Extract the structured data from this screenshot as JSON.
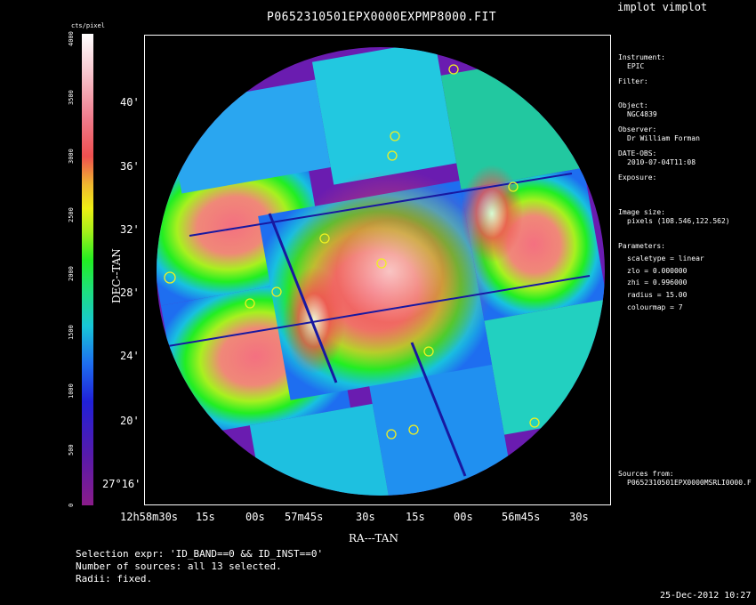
{
  "app_title": "implot vimplot",
  "plot_title": "P0652310501EPX0000EXPMP8000.FIT",
  "colorbar": {
    "unit": "cts/pixel",
    "ticks": [
      "4000",
      "3500",
      "3000",
      "2500",
      "2000",
      "1500",
      "1000",
      "500",
      "0"
    ]
  },
  "y_axis": {
    "title": "DEC--TAN",
    "ticks": [
      "40'",
      "36'",
      "32'",
      "28'",
      "24'",
      "20'",
      "27°16'"
    ]
  },
  "x_axis": {
    "title": "RA---TAN",
    "ticks": [
      "12h58m30s",
      "15s",
      "00s",
      "57m45s",
      "30s",
      "15s",
      "00s",
      "56m45s",
      "30s"
    ]
  },
  "info": {
    "instrument_label": "Instrument:",
    "instrument_value": "EPIC",
    "filter_label": "Filter:",
    "object_label": "Object:",
    "object_value": "NGC4839",
    "observer_label": "Observer:",
    "observer_value": "Dr William Forman",
    "date_obs_label": "DATE-OBS:",
    "date_obs_value": "2010-07-04T11:08",
    "exposure_label": "Exposure:",
    "image_size_label": "Image size:",
    "image_size_value": "pixels (108.546,122.562)",
    "parameters_label": "Parameters:",
    "param_scaletype": "scaletype = linear",
    "param_zlo": "zlo = 0.000000",
    "param_zhi": "zhi = 0.996000",
    "param_radius": "radius = 15.00",
    "param_colourmap": "colourmap = 7",
    "sources_label": "Sources from:",
    "sources_value": "P0652310501EPX0000MSRLI0000.F"
  },
  "footer": {
    "selection": "Selection expr: 'ID_BAND==0 && ID_INST==0'",
    "count": "Number of sources: all 13 selected.",
    "radii": "Radii: fixed.",
    "timestamp": "25-Dec-2012 10:27"
  },
  "image_description_colors": {
    "background": "#000000",
    "outer_disc": "#6a1cb0",
    "source_circle": "#f0f020"
  }
}
